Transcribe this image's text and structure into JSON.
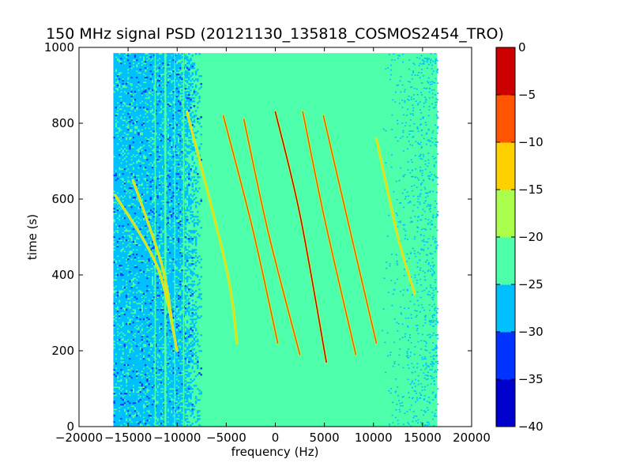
{
  "chart_data": {
    "type": "heatmap",
    "title": "150 MHz signal PSD (20121130_135818_COSMOS2454_TRO)",
    "xlabel": "frequency (Hz)",
    "ylabel": "time (s)",
    "xlim": [
      -20000,
      20000
    ],
    "ylim": [
      0,
      1000
    ],
    "x_ticks": [
      -20000,
      -15000,
      -10000,
      -5000,
      0,
      5000,
      10000,
      15000,
      20000
    ],
    "y_ticks": [
      0,
      200,
      400,
      600,
      800,
      1000
    ],
    "data_extent": {
      "x": [
        -16500,
        16500
      ],
      "y": [
        0,
        985
      ]
    },
    "background_level_range": [
      -25,
      -20
    ],
    "noise_region_level_range": [
      -30,
      -25
    ],
    "noise_region_freq_range": [
      -16500,
      -7500
    ],
    "colorbar": {
      "levels": [
        -40,
        -35,
        -30,
        -25,
        -20,
        -15,
        -10,
        -5,
        0
      ],
      "tick_labels": [
        "0",
        "−5",
        "−10",
        "−15",
        "−20",
        "−25",
        "−30",
        "−35",
        "−40"
      ],
      "colors": [
        "#0000cd",
        "#0033ff",
        "#00c0ff",
        "#4dffaa",
        "#aaff4d",
        "#ffd000",
        "#ff5500",
        "#cd0000"
      ]
    },
    "series": [
      {
        "x": [
          -16300,
          -12000,
          -10000
        ],
        "y": [
          610,
          420,
          200
        ],
        "peak_level": -15
      },
      {
        "x": [
          -14500,
          -11500,
          -10400
        ],
        "y": [
          650,
          420,
          250
        ],
        "peak_level": -15
      },
      {
        "x": [
          -9000,
          -5000,
          -3900
        ],
        "y": [
          830,
          420,
          220
        ],
        "peak_level": -15
      },
      {
        "x": [
          -5300,
          -2300,
          250
        ],
        "y": [
          820,
          520,
          220
        ],
        "peak_level": -10
      },
      {
        "x": [
          -3200,
          -700,
          2500
        ],
        "y": [
          810,
          510,
          190
        ],
        "peak_level": -10
      },
      {
        "x": [
          0,
          2500,
          5200
        ],
        "y": [
          830,
          560,
          170
        ],
        "peak_level": -5
      },
      {
        "x": [
          2800,
          5000,
          8200
        ],
        "y": [
          830,
          550,
          190
        ],
        "peak_level": -10
      },
      {
        "x": [
          4900,
          7500,
          10300
        ],
        "y": [
          820,
          530,
          220
        ],
        "peak_level": -10
      },
      {
        "x": [
          10300,
          12500,
          14200
        ],
        "y": [
          760,
          500,
          350
        ],
        "peak_level": -15
      }
    ]
  }
}
